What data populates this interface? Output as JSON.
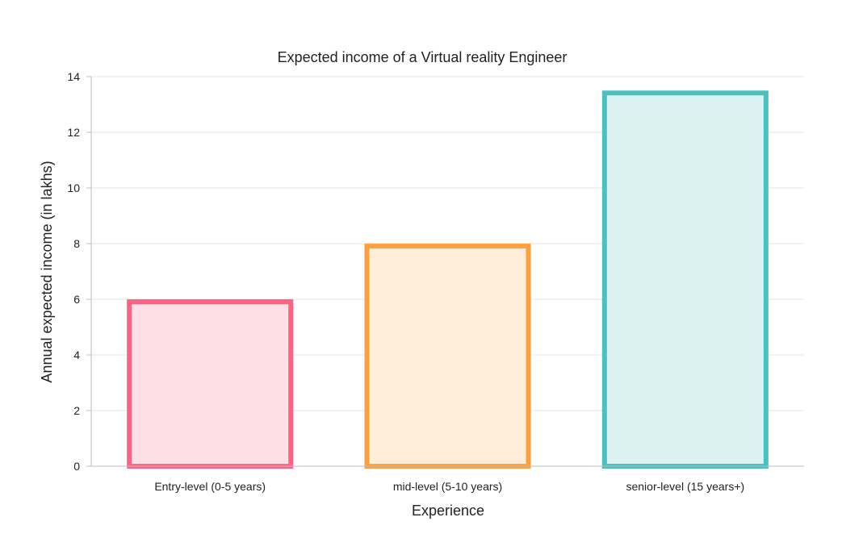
{
  "chart_data": {
    "type": "bar",
    "title": "Expected income of a Virtual reality Engineer",
    "xlabel": "Experience",
    "ylabel": "Annual expected income (in lakhs)",
    "categories": [
      "Entry-level (0-5 years)",
      "mid-level (5-10 years)",
      "senior-level (15 years+)"
    ],
    "values": [
      6,
      8,
      13.5
    ],
    "ylim": [
      0,
      14
    ],
    "yticks": [
      0,
      2,
      4,
      6,
      8,
      10,
      12,
      14
    ],
    "grid": true,
    "legend": "none",
    "colors": {
      "border": [
        "#ff6384",
        "#ff9f40",
        "#4bc0c0"
      ],
      "fill": [
        "#ffdfe6",
        "#ffecd9",
        "#dbf2f2"
      ]
    }
  }
}
